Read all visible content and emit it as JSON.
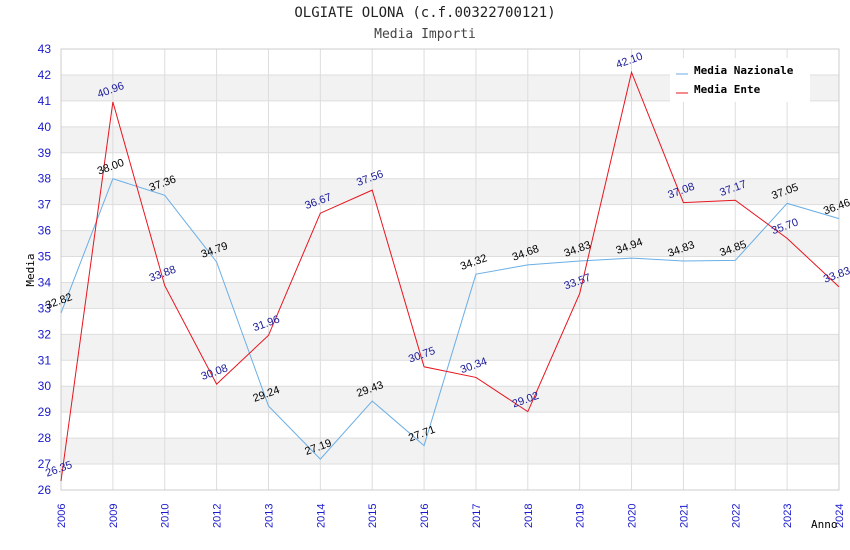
{
  "title": "OLGIATE OLONA (c.f.00322700121)",
  "subtitle": "Media Importi",
  "colors": {
    "nazionale": "#6aaee6",
    "ente": "#e8141e",
    "tick": "#1a1acc",
    "band": "#f2f2f2",
    "grid": "#dddddd"
  },
  "chart_data": {
    "type": "line",
    "categories": [
      "2006",
      "2009",
      "2010",
      "2012",
      "2013",
      "2014",
      "2015",
      "2016",
      "2017",
      "2018",
      "2019",
      "2020",
      "2021",
      "2022",
      "2023",
      "2024"
    ],
    "xlabel": "Anno",
    "ylabel": "Media",
    "ylim": [
      26,
      43
    ],
    "yticks": [
      26,
      27,
      28,
      29,
      30,
      31,
      32,
      33,
      34,
      35,
      36,
      37,
      38,
      39,
      40,
      41,
      42,
      43
    ],
    "legend_position": "top-right",
    "series": [
      {
        "name": "Media Nazionale",
        "color": "#6aaee6",
        "label_color": "#000000",
        "values": [
          32.82,
          38.0,
          37.36,
          34.79,
          29.24,
          27.19,
          29.43,
          27.71,
          34.32,
          34.68,
          34.83,
          34.94,
          34.83,
          34.85,
          37.05,
          36.46
        ],
        "labels": [
          "32.82",
          "38.00",
          "37.36",
          "34.79",
          "29.24",
          "27.19",
          "29.43",
          "27.71",
          "34.32",
          "34.68",
          "34.83",
          "34.94",
          "34.83",
          "34.85",
          "37.05",
          "36.46"
        ]
      },
      {
        "name": "Media Ente",
        "color": "#e8141e",
        "label_color": "#1a1a99",
        "values": [
          26.35,
          40.96,
          33.88,
          30.08,
          31.96,
          36.67,
          37.56,
          30.75,
          30.34,
          29.02,
          33.57,
          42.1,
          37.08,
          37.17,
          35.7,
          33.83
        ],
        "labels": [
          "26.35",
          "40.96",
          "33.88",
          "30.08",
          "31.96",
          "36.67",
          "37.56",
          "30.75",
          "30.34",
          "29.02",
          "33.57",
          "42.10",
          "37.08",
          "37.17",
          "35.70",
          "33.83"
        ]
      }
    ]
  }
}
